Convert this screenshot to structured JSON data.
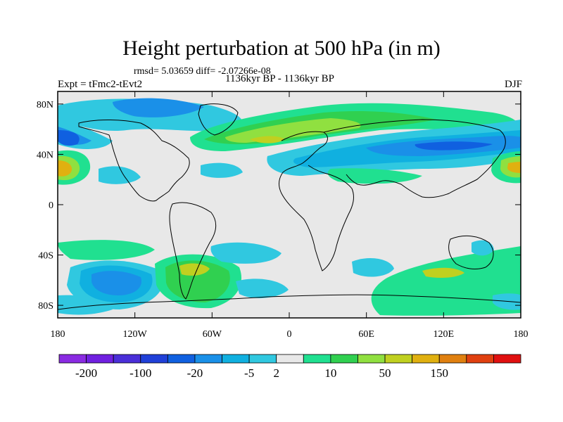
{
  "title": "Height perturbation at 500 hPa (in m)",
  "stats": "rmsd= 5.03659 diff= -2.07266e-08",
  "period": "1136kyr BP - 1136kyr BP",
  "experiment": "Expt = tFmc2-tEvt2",
  "season": "DJF",
  "lat_labels": [
    "80N",
    "40N",
    "0",
    "40S",
    "80S"
  ],
  "lat_values": [
    80,
    40,
    0,
    -40,
    -80
  ],
  "lon_labels": [
    "180",
    "120W",
    "60W",
    "0",
    "60E",
    "120E",
    "180"
  ],
  "lon_values": [
    -180,
    -120,
    -60,
    0,
    60,
    120,
    180
  ],
  "colorbar": {
    "colors": [
      "#8a2be2",
      "#7020e0",
      "#4a2fd8",
      "#2040d8",
      "#1060e0",
      "#1a90e8",
      "#10b0e0",
      "#30c8e0",
      "#e8e8e8",
      "#20e090",
      "#30d050",
      "#90e040",
      "#c0d020",
      "#e0b010",
      "#e08010",
      "#e04010",
      "#e01010"
    ],
    "labels": [
      "-200",
      "-100",
      "-20",
      "-5",
      "2",
      "10",
      "50",
      "150"
    ],
    "label_after_box": [
      1,
      3,
      5,
      7,
      8,
      10,
      12,
      14
    ]
  },
  "colors": {
    "background": "#e8e8e8",
    "land_outline": "#000000"
  }
}
